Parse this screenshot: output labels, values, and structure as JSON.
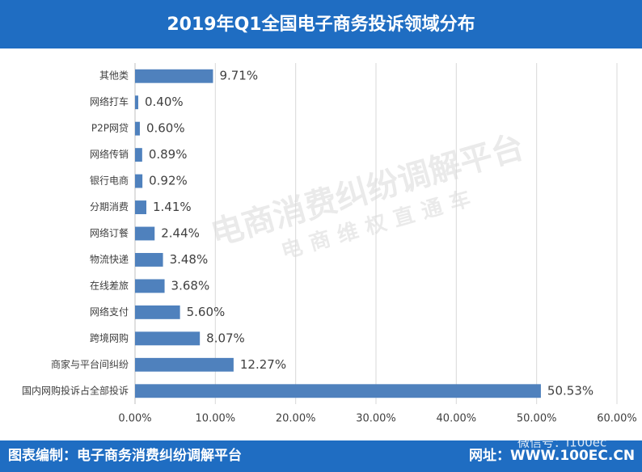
{
  "chart_data": {
    "type": "hbar",
    "title": "2019年Q1全国电子商务投诉领域分布",
    "categories": [
      "其他类",
      "网络打车",
      "P2P网贷",
      "网络传销",
      "银行电商",
      "分期消费",
      "网络订餐",
      "物流快递",
      "在线差旅",
      "网络支付",
      "跨境网购",
      "商家与平台间纠纷",
      "国内网购投诉占全部投诉"
    ],
    "values": [
      9.71,
      0.4,
      0.6,
      0.89,
      0.92,
      1.41,
      2.44,
      3.48,
      3.68,
      5.6,
      8.07,
      12.27,
      50.53
    ],
    "value_labels": [
      "9.71%",
      "0.40%",
      "0.60%",
      "0.89%",
      "0.92%",
      "1.41%",
      "2.44%",
      "3.48%",
      "3.68%",
      "5.60%",
      "8.07%",
      "12.27%",
      "50.53%"
    ],
    "color": "#4f81bd",
    "xlim": [
      0,
      60
    ],
    "xticks": [
      {
        "value": 0,
        "label": "0.00%"
      },
      {
        "value": 10,
        "label": "10.00%"
      },
      {
        "value": 20,
        "label": "20.00%"
      },
      {
        "value": 30,
        "label": "30.00%"
      },
      {
        "value": 40,
        "label": "40.00%"
      },
      {
        "value": 50,
        "label": "50.00%"
      },
      {
        "value": 60,
        "label": "60.00%"
      }
    ],
    "grid": true
  },
  "watermark": {
    "main": "电商消费纠纷调解平台",
    "sub": "电商维权直通车"
  },
  "footer": {
    "left": "图表编制：电子商务消费纠纷调解平台",
    "right": "网址：WWW.100EC.CN",
    "overlay": "微信号：i100ec"
  }
}
